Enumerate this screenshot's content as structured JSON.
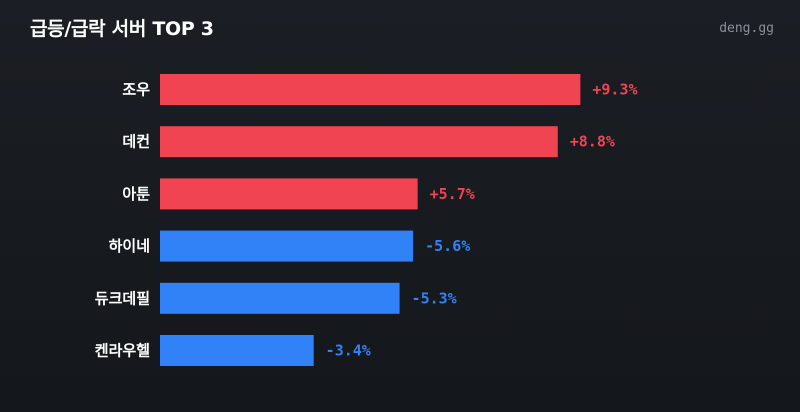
{
  "header": {
    "title": "급등/급락 서버 TOP 3",
    "brand": "deng.gg"
  },
  "colors": {
    "positive": "#f04452",
    "negative": "#3182f6"
  },
  "chart_data": {
    "type": "bar",
    "orientation": "horizontal",
    "unit": "%",
    "categories": [
      "조우",
      "데컨",
      "아툰",
      "하이네",
      "듀크데필",
      "켄라우헬"
    ],
    "values": [
      9.3,
      8.8,
      5.7,
      -5.6,
      -5.3,
      -3.4
    ],
    "value_labels": [
      "+9.3%",
      "+8.8%",
      "+5.7%",
      "-5.6%",
      "-5.3%",
      "-3.4%"
    ],
    "xlim": [
      0,
      10
    ],
    "grid": false,
    "legend": "none"
  }
}
